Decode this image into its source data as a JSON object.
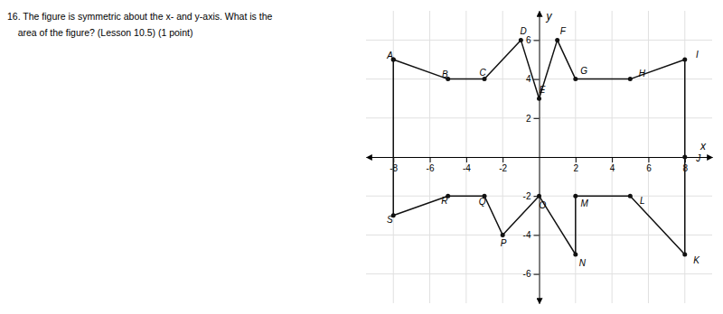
{
  "chart_data": {
    "type": "line",
    "title": "16. The figure is symmetric about the x- and y-axis. What is the",
    "subtitle": "    area of the figure? (Lesson 10.5) (1 point)",
    "x_label": "x",
    "y_label": "y",
    "x": [
      -8,
      -5,
      -3,
      -1,
      0,
      1,
      2,
      5,
      8,
      8,
      8,
      5,
      2,
      2,
      0,
      -2,
      -3,
      -5,
      -8,
      -8
    ],
    "values": [
      5,
      4,
      4,
      6,
      3,
      6,
      4,
      4,
      5,
      0,
      -5,
      -2,
      -2,
      -5,
      -2,
      -4,
      -2,
      -2,
      -3,
      5
    ],
    "color": "#111111",
    "marker": "circle",
    "line_style": "solid",
    "annotations": [
      {
        "text": "A",
        "x": -8,
        "y": 5
      },
      {
        "text": "B",
        "x": -5,
        "y": 4
      },
      {
        "text": "C",
        "x": -3,
        "y": 4
      },
      {
        "text": "D",
        "x": -1,
        "y": 6
      },
      {
        "text": "E",
        "x": 0,
        "y": 3
      },
      {
        "text": "F",
        "x": 1,
        "y": 6
      },
      {
        "text": "G",
        "x": 2,
        "y": 4
      },
      {
        "text": "H",
        "x": 5,
        "y": 4
      },
      {
        "text": "I",
        "x": 8,
        "y": 5
      },
      {
        "text": "J",
        "x": 8,
        "y": 0
      },
      {
        "text": "K",
        "x": 8,
        "y": -5
      },
      {
        "text": "L",
        "x": 5,
        "y": -2
      },
      {
        "text": "M",
        "x": 2,
        "y": -2
      },
      {
        "text": "N",
        "x": 2,
        "y": -5
      },
      {
        "text": "O",
        "x": 0,
        "y": -2
      },
      {
        "text": "P",
        "x": -2,
        "y": -4
      },
      {
        "text": "Q",
        "x": -3,
        "y": -2
      },
      {
        "text": "R",
        "x": -5,
        "y": -2
      },
      {
        "text": "S",
        "x": -8,
        "y": -3
      }
    ],
    "xlim": [
      -9.5,
      9.5
    ],
    "ylim": [
      -7.5,
      7.5
    ],
    "xticks": [
      -8,
      -6,
      -4,
      -2,
      2,
      4,
      6,
      8
    ],
    "yticks": [
      -6,
      -4,
      -2,
      2,
      4,
      6
    ],
    "grid": true
  }
}
